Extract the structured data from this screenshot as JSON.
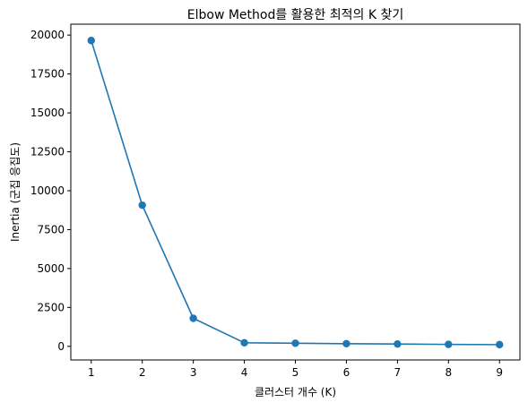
{
  "chart_data": {
    "type": "line",
    "title": "Elbow Method를 활용한 최적의 K 찾기",
    "xlabel": "클러스터 개수 (K)",
    "ylabel": "Inertia (군집 응집도)",
    "x": [
      1,
      2,
      3,
      4,
      5,
      6,
      7,
      8,
      9
    ],
    "series": [
      {
        "values": [
          19650,
          9070,
          1800,
          230,
          200,
          170,
          150,
          125,
          110
        ],
        "color": "#1f77b4",
        "marker": "circle"
      }
    ],
    "xticks": [
      "1",
      "2",
      "3",
      "4",
      "5",
      "6",
      "7",
      "8",
      "9"
    ],
    "yticks": [
      "0",
      "2500",
      "5000",
      "7500",
      "10000",
      "12500",
      "15000",
      "17500",
      "20000"
    ],
    "xlim": [
      0.6,
      9.4
    ],
    "ylim": [
      -875,
      20700
    ],
    "grid": false,
    "legend": false
  }
}
